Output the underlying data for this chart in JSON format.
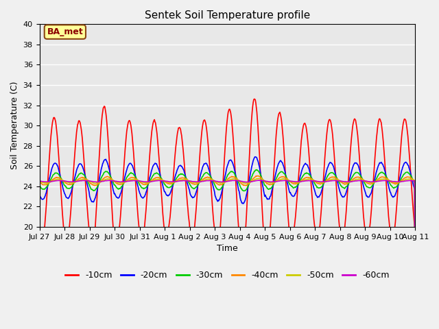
{
  "title": "Sentek Soil Temperature profile",
  "xlabel": "Time",
  "ylabel": "Soil Temperature (C)",
  "ylim": [
    20,
    40
  ],
  "n_days": 15,
  "background_color": "#e8e8e8",
  "grid_color": "#ffffff",
  "annotation_text": "BA_met",
  "annotation_bg": "#ffff99",
  "annotation_border": "#8B4513",
  "legend_labels": [
    "-10cm",
    "-20cm",
    "-30cm",
    "-40cm",
    "-50cm",
    "-60cm"
  ],
  "legend_colors": [
    "#ff0000",
    "#0000ff",
    "#00cc00",
    "#ff8800",
    "#cccc00",
    "#cc00cc"
  ],
  "hours_per_day": 48,
  "base_temp": 24.5,
  "day_amplitudes": [
    7.0,
    2.0,
    0.9,
    0.4,
    0.2,
    0.07
  ],
  "day_phases": [
    14,
    15,
    16,
    17,
    18,
    19
  ],
  "tick_labels": [
    "Jul 27",
    "Jul 28",
    "Jul 29",
    "Jul 30",
    "Jul 31",
    "Aug 1",
    "Aug 2",
    "Aug 3",
    "Aug 4",
    "Aug 5",
    "Aug 6",
    "Aug 7",
    "Aug 8",
    "Aug 9",
    "Aug 10",
    "Aug 11"
  ],
  "peak_scale": [
    0.9,
    0.85,
    1.05,
    0.85,
    0.85,
    0.75,
    0.85,
    1.0,
    1.15,
    0.95,
    0.8,
    0.85,
    0.85,
    0.85,
    0.85
  ]
}
